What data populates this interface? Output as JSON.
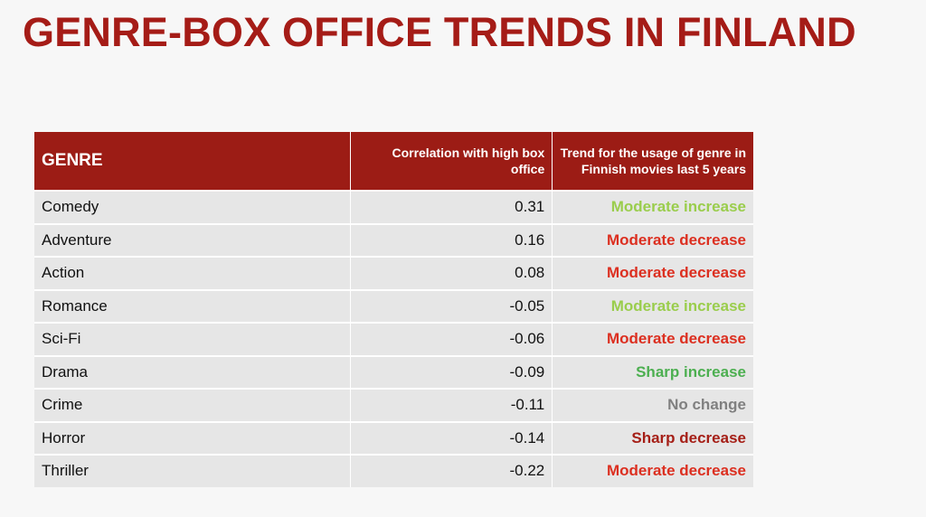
{
  "title": "GENRE-BOX OFFICE TRENDS IN FINLAND",
  "table": {
    "header": [
      "GENRE",
      "Correlation with high box office",
      "Trend for the usage of genre in Finnish movies last 5 years"
    ],
    "header_color": "#9c1c15",
    "rows": [
      {
        "genre": "Comedy",
        "correlation": 0.31,
        "trend": "Moderate increase",
        "trend_color": "#9acd4c"
      },
      {
        "genre": "Adventure",
        "correlation": 0.16,
        "trend": "Moderate decrease",
        "trend_color": "#dc2f20"
      },
      {
        "genre": "Action",
        "correlation": 0.08,
        "trend": "Moderate decrease",
        "trend_color": "#dc2f20"
      },
      {
        "genre": "Romance",
        "correlation": -0.05,
        "trend": "Moderate increase",
        "trend_color": "#9acd4c"
      },
      {
        "genre": "Sci-Fi",
        "correlation": -0.06,
        "trend": "Moderate decrease",
        "trend_color": "#dc2f20"
      },
      {
        "genre": "Drama",
        "correlation": -0.09,
        "trend": "Sharp increase",
        "trend_color": "#4caf50"
      },
      {
        "genre": "Crime",
        "correlation": -0.11,
        "trend": "No change",
        "trend_color": "#808080"
      },
      {
        "genre": "Horror",
        "correlation": -0.14,
        "trend": "Sharp decrease",
        "trend_color": "#a51f17"
      },
      {
        "genre": "Thriller",
        "correlation": -0.22,
        "trend": "Moderate decrease",
        "trend_color": "#dc2f20"
      }
    ]
  }
}
